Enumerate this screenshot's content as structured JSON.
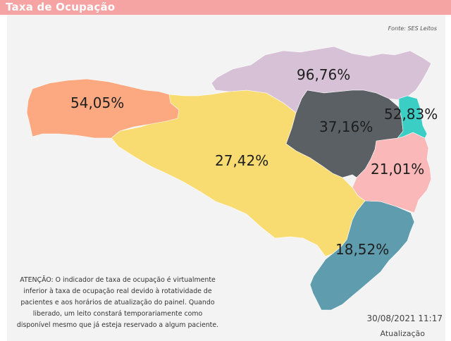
{
  "header": {
    "title": "Taxa de Ocupação"
  },
  "source": "Fonte: SES Leitos",
  "regions": [
    {
      "id": "extremo-oeste",
      "label": "54,05%",
      "color": "#fca982"
    },
    {
      "id": "oeste-meio-oeste",
      "label": "27,42%",
      "color": "#f8dc71"
    },
    {
      "id": "planalto-norte-nordeste",
      "label": "96,76%",
      "color": "#d7c1d7"
    },
    {
      "id": "vale-itajai",
      "label": "37,16%",
      "color": "#5b6064"
    },
    {
      "id": "foz-rio-itajai",
      "label": "52,83%",
      "color": "#3bcec4"
    },
    {
      "id": "grande-florianopolis",
      "label": "21,01%",
      "color": "#fbb8b8"
    },
    {
      "id": "sul",
      "label": "18,52%",
      "color": "#5f9dae"
    }
  ],
  "notice": "ATENÇÃO: O indicador de taxa de ocupação é virtualmente inferior à taxa de ocupação real devido à rotatividade de pacientes e aos horários de atualização do painel.  Quando liberado, um leito constará temporariamente como disponível mesmo que já esteja reservado a algum paciente.",
  "update": {
    "datetime": "30/08/2021 11:17",
    "label": "Atualização"
  }
}
